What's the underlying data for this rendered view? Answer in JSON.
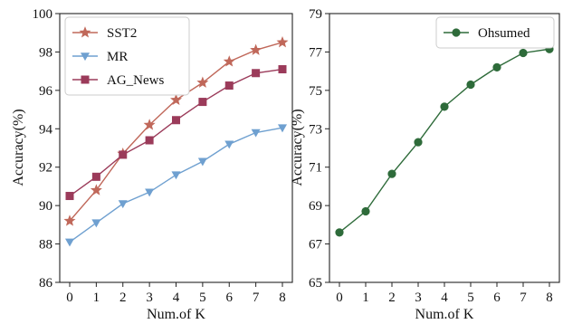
{
  "chart_data": [
    {
      "type": "line",
      "x": [
        0,
        1,
        2,
        3,
        4,
        5,
        6,
        7,
        8
      ],
      "xlabel": "Num.of K",
      "ylabel": "Accuracy(%)",
      "ylim": [
        86,
        100
      ],
      "yticks": [
        86,
        88,
        90,
        92,
        94,
        96,
        98,
        100
      ],
      "xticks": [
        0,
        1,
        2,
        3,
        4,
        5,
        6,
        7,
        8
      ],
      "grid": false,
      "legend": "top-left",
      "series": [
        {
          "name": "SST2",
          "color": "#c0685a",
          "marker": "star",
          "values": [
            89.2,
            90.8,
            92.7,
            94.2,
            95.5,
            96.4,
            97.5,
            98.1,
            98.5
          ]
        },
        {
          "name": "MR",
          "color": "#6fa0d0",
          "marker": "triangle-down",
          "values": [
            88.1,
            89.1,
            90.1,
            90.7,
            91.6,
            92.3,
            93.2,
            93.8,
            94.05
          ]
        },
        {
          "name": "AG_News",
          "color": "#9b3b5a",
          "marker": "square",
          "values": [
            90.5,
            91.5,
            92.65,
            93.4,
            94.45,
            95.4,
            96.25,
            96.9,
            97.1
          ]
        }
      ]
    },
    {
      "type": "line",
      "x": [
        0,
        1,
        2,
        3,
        4,
        5,
        6,
        7,
        8
      ],
      "xlabel": "Num.of K",
      "ylabel": "Accuracy(%)",
      "ylim": [
        65,
        79
      ],
      "yticks": [
        65,
        67,
        69,
        71,
        73,
        75,
        77,
        79
      ],
      "xticks": [
        0,
        1,
        2,
        3,
        4,
        5,
        6,
        7,
        8
      ],
      "grid": false,
      "legend": "top-right",
      "series": [
        {
          "name": "Ohsumed",
          "color": "#2e6b3a",
          "marker": "circle",
          "values": [
            67.6,
            68.7,
            70.65,
            72.3,
            74.15,
            75.3,
            76.2,
            76.95,
            77.15
          ]
        }
      ]
    }
  ]
}
